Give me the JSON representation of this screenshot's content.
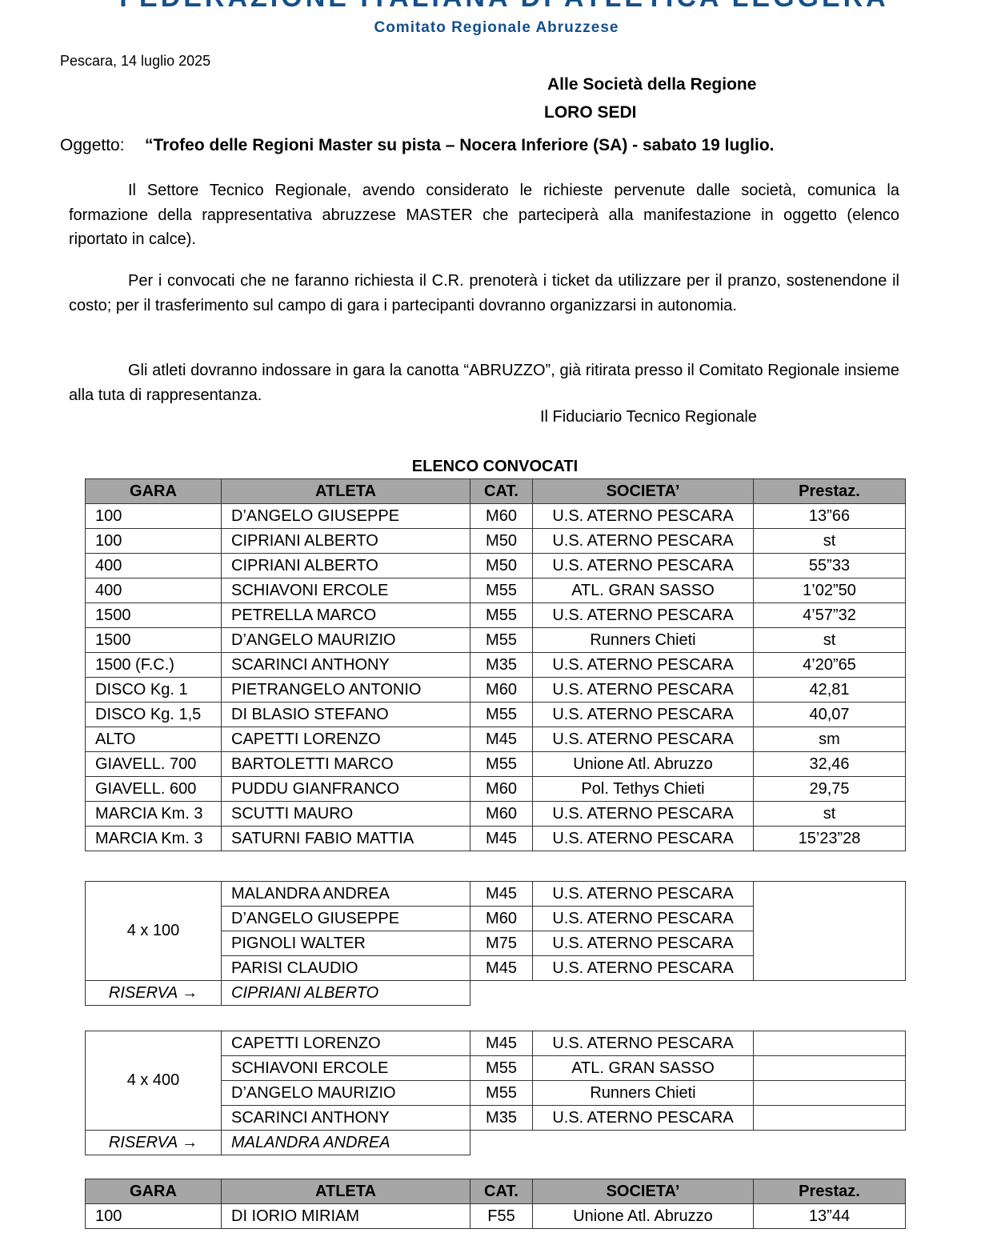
{
  "header": {
    "federation": "FEDERAZIONE  ITALIANA           DI ATLETICA LEGGERA",
    "committee": "Comitato Regionale Abruzzese",
    "colors": {
      "brand": "#14508c"
    }
  },
  "letter": {
    "place_date": "Pescara, 14 luglio 2025",
    "recipient1": "Alle Società della Regione",
    "recipient2": "LORO SEDI",
    "subject_label": "Oggetto:",
    "subject": "“Trofeo delle Regioni Master su pista – Nocera Inferiore (SA) - sabato 19 luglio.",
    "paragraphs": [
      "Il Settore Tecnico Regionale, avendo considerato le richieste pervenute dalle società, comunica la formazione della rappresentativa abruzzese MASTER che parteciperà alla manifestazione in oggetto (elenco riportato in calce).",
      "Per i convocati che ne faranno richiesta il C.R. prenoterà i ticket da utilizzare per il pranzo, sostenendone il costo; per il trasferimento sul campo di gara i partecipanti dovranno organizzarsi in autonomia.",
      "Gli atleti dovranno indossare in gara la canotta “ABRUZZO”, già ritirata presso il Comitato Regionale insieme alla tuta di rappresentanza."
    ],
    "signature": "Il Fiduciario Tecnico Regionale"
  },
  "list_title": "ELENCO CONVOCATI",
  "columns": [
    "GARA",
    "ATLETA",
    "CAT.",
    "SOCIETA’",
    "Prestaz."
  ],
  "men": [
    [
      "100",
      "D’ANGELO GIUSEPPE",
      "M60",
      "U.S. ATERNO PESCARA",
      "13”66"
    ],
    [
      "100",
      "CIPRIANI ALBERTO",
      "M50",
      "U.S. ATERNO PESCARA",
      "st"
    ],
    [
      "400",
      "CIPRIANI ALBERTO",
      "M50",
      "U.S. ATERNO PESCARA",
      "55”33"
    ],
    [
      "400",
      "SCHIAVONI ERCOLE",
      "M55",
      "ATL. GRAN SASSO",
      "1’02”50"
    ],
    [
      "1500",
      "PETRELLA MARCO",
      "M55",
      "U.S. ATERNO PESCARA",
      "4’57”32"
    ],
    [
      "1500",
      "D’ANGELO MAURIZIO",
      "M55",
      "Runners Chieti",
      "st"
    ],
    [
      "1500 (F.C.)",
      "SCARINCI ANTHONY",
      "M35",
      "U.S. ATERNO PESCARA",
      "4’20”65"
    ],
    [
      "DISCO Kg. 1",
      "PIETRANGELO ANTONIO",
      "M60",
      "U.S. ATERNO PESCARA",
      "42,81"
    ],
    [
      "DISCO Kg. 1,5",
      "DI BLASIO STEFANO",
      "M55",
      "U.S. ATERNO PESCARA",
      "40,07"
    ],
    [
      "ALTO",
      "CAPETTI LORENZO",
      "M45",
      "U.S. ATERNO PESCARA",
      "sm"
    ],
    [
      "GIAVELL. 700",
      "BARTOLETTI MARCO",
      "M55",
      "Unione Atl. Abruzzo",
      "32,46"
    ],
    [
      "GIAVELL. 600",
      "PUDDU GIANFRANCO",
      "M60",
      "Pol. Tethys Chieti",
      "29,75"
    ],
    [
      "MARCIA Km. 3",
      "SCUTTI MAURO",
      "M60",
      "U.S. ATERNO PESCARA",
      "st"
    ],
    [
      "MARCIA Km. 3",
      "SATURNI FABIO MATTIA",
      "M45",
      "U.S. ATERNO PESCARA",
      "15’23”28"
    ]
  ],
  "relays": [
    {
      "event": "4 x 100",
      "members": [
        [
          "MALANDRA ANDREA",
          "M45",
          "U.S. ATERNO PESCARA"
        ],
        [
          "D’ANGELO GIUSEPPE",
          "M60",
          "U.S. ATERNO PESCARA"
        ],
        [
          "PIGNOLI WALTER",
          "M75",
          "U.S. ATERNO PESCARA"
        ],
        [
          "PARISI CLAUDIO",
          "M45",
          "U.S. ATERNO PESCARA"
        ]
      ],
      "reserve_label": "RISERVA →",
      "reserve": "CIPRIANI ALBERTO"
    },
    {
      "event": "4 x 400",
      "members": [
        [
          "CAPETTI LORENZO",
          "M45",
          "U.S. ATERNO PESCARA"
        ],
        [
          "SCHIAVONI ERCOLE",
          "M55",
          "ATL. GRAN SASSO"
        ],
        [
          "D’ANGELO MAURIZIO",
          "M55",
          "Runners Chieti"
        ],
        [
          "SCARINCI ANTHONY",
          "M35",
          "U.S. ATERNO PESCARA"
        ]
      ],
      "reserve_label": "RISERVA →",
      "reserve": "MALANDRA ANDREA"
    }
  ],
  "women": [
    [
      "100",
      "DI IORIO MIRIAM",
      "F55",
      "Unione Atl. Abruzzo",
      "13”44"
    ]
  ]
}
